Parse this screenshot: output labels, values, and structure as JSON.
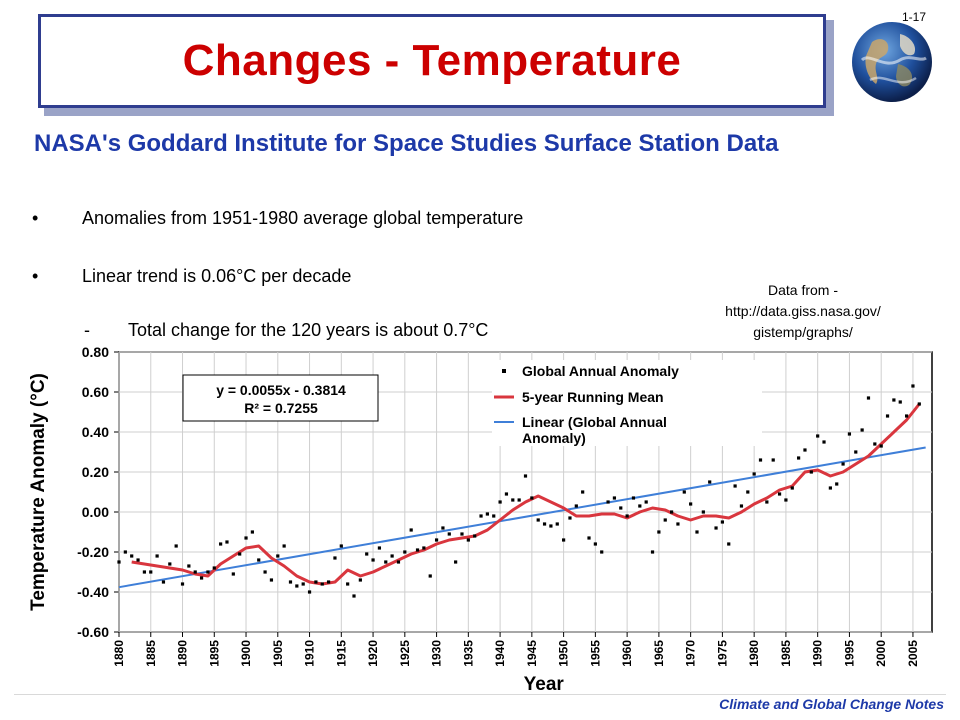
{
  "slide": {
    "number": "1-17",
    "title": "Changes - Temperature",
    "subtitle": "NASA's Goddard Institute for Space Studies Surface Station Data",
    "bullets": [
      "Anomalies from 1951-1980 average global temperature",
      "Linear trend is 0.06°C per decade"
    ],
    "subbullet": "Total change for the 120 years is about 0.7°C",
    "source": {
      "line1": "Data from -",
      "line2": "http://data.giss.nasa.gov/",
      "line3": "gistemp/graphs/"
    },
    "footer": "Climate and Global Change Notes"
  },
  "colors": {
    "title": "#cc0000",
    "subtitle": "#1d39a8",
    "title_border": "#2f3d8f",
    "running_mean": "#d9363e",
    "linear": "#3f7fd8",
    "points": "#000000"
  },
  "chart_data": {
    "type": "scatter",
    "xlabel": "Year",
    "ylabel": "Temperature Anomaly (°C)",
    "xlim": [
      1880,
      2008
    ],
    "ylim": [
      -0.6,
      0.8
    ],
    "x_ticks": [
      "1880",
      "1885",
      "1890",
      "1895",
      "1900",
      "1905",
      "1910",
      "1915",
      "1920",
      "1925",
      "1930",
      "1935",
      "1940",
      "1945",
      "1950",
      "1955",
      "1960",
      "1965",
      "1970",
      "1975",
      "1980",
      "1985",
      "1990",
      "1995",
      "2000",
      "2005"
    ],
    "y_ticks": [
      "0.80",
      "0.60",
      "0.40",
      "0.20",
      "0.00",
      "-0.20",
      "-0.40",
      "-0.60"
    ],
    "grid": true,
    "legend_position": "top-right",
    "equation": "y = 0.0055x - 0.3814",
    "r_squared": "R² = 0.7255",
    "series": [
      {
        "name": "Global Annual Anomaly",
        "type": "scatter",
        "x": [
          1880,
          1881,
          1882,
          1883,
          1884,
          1885,
          1886,
          1887,
          1888,
          1889,
          1890,
          1891,
          1892,
          1893,
          1894,
          1895,
          1896,
          1897,
          1898,
          1899,
          1900,
          1901,
          1902,
          1903,
          1904,
          1905,
          1906,
          1907,
          1908,
          1909,
          1910,
          1911,
          1912,
          1913,
          1914,
          1915,
          1916,
          1917,
          1918,
          1919,
          1920,
          1921,
          1922,
          1923,
          1924,
          1925,
          1926,
          1927,
          1928,
          1929,
          1930,
          1931,
          1932,
          1933,
          1934,
          1935,
          1936,
          1937,
          1938,
          1939,
          1940,
          1941,
          1942,
          1943,
          1944,
          1945,
          1946,
          1947,
          1948,
          1949,
          1950,
          1951,
          1952,
          1953,
          1954,
          1955,
          1956,
          1957,
          1958,
          1959,
          1960,
          1961,
          1962,
          1963,
          1964,
          1965,
          1966,
          1967,
          1968,
          1969,
          1970,
          1971,
          1972,
          1973,
          1974,
          1975,
          1976,
          1977,
          1978,
          1979,
          1980,
          1981,
          1982,
          1983,
          1984,
          1985,
          1986,
          1987,
          1988,
          1989,
          1990,
          1991,
          1992,
          1993,
          1994,
          1995,
          1996,
          1997,
          1998,
          1999,
          2000,
          2001,
          2002,
          2003,
          2004,
          2005,
          2006
        ],
        "y": [
          -0.25,
          -0.2,
          -0.22,
          -0.24,
          -0.3,
          -0.3,
          -0.22,
          -0.35,
          -0.26,
          -0.17,
          -0.36,
          -0.27,
          -0.3,
          -0.33,
          -0.3,
          -0.28,
          -0.16,
          -0.15,
          -0.31,
          -0.21,
          -0.13,
          -0.1,
          -0.24,
          -0.3,
          -0.34,
          -0.22,
          -0.17,
          -0.35,
          -0.37,
          -0.36,
          -0.4,
          -0.35,
          -0.36,
          -0.35,
          -0.23,
          -0.17,
          -0.36,
          -0.42,
          -0.34,
          -0.21,
          -0.24,
          -0.18,
          -0.25,
          -0.22,
          -0.25,
          -0.2,
          -0.09,
          -0.19,
          -0.18,
          -0.32,
          -0.14,
          -0.08,
          -0.11,
          -0.25,
          -0.11,
          -0.14,
          -0.12,
          -0.02,
          -0.01,
          -0.02,
          0.05,
          0.09,
          0.06,
          0.06,
          0.18,
          0.07,
          -0.04,
          -0.06,
          -0.07,
          -0.06,
          -0.14,
          -0.03,
          0.03,
          0.1,
          -0.13,
          -0.16,
          -0.2,
          0.05,
          0.07,
          0.02,
          -0.02,
          0.07,
          0.03,
          0.05,
          -0.2,
          -0.1,
          -0.04,
          0.0,
          -0.06,
          0.1,
          0.04,
          -0.1,
          0.0,
          0.15,
          -0.08,
          -0.05,
          -0.16,
          0.13,
          0.03,
          0.1,
          0.19,
          0.26,
          0.05,
          0.26,
          0.09,
          0.06,
          0.12,
          0.27,
          0.31,
          0.2,
          0.38,
          0.35,
          0.12,
          0.14,
          0.24,
          0.39,
          0.3,
          0.41,
          0.57,
          0.34,
          0.33,
          0.48,
          0.56,
          0.55,
          0.48,
          0.63,
          0.54
        ]
      },
      {
        "name": "5-year Running Mean",
        "type": "line",
        "x": [
          1882,
          1884,
          1886,
          1888,
          1890,
          1892,
          1894,
          1896,
          1898,
          1900,
          1902,
          1904,
          1906,
          1908,
          1910,
          1912,
          1914,
          1916,
          1918,
          1920,
          1922,
          1924,
          1926,
          1928,
          1930,
          1932,
          1934,
          1936,
          1938,
          1940,
          1942,
          1944,
          1946,
          1948,
          1950,
          1952,
          1954,
          1956,
          1958,
          1960,
          1962,
          1964,
          1966,
          1968,
          1970,
          1972,
          1974,
          1976,
          1978,
          1980,
          1982,
          1984,
          1986,
          1988,
          1990,
          1992,
          1994,
          1996,
          1998,
          2000,
          2002,
          2004,
          2006
        ],
        "y": [
          -0.25,
          -0.26,
          -0.27,
          -0.28,
          -0.29,
          -0.31,
          -0.32,
          -0.26,
          -0.22,
          -0.18,
          -0.17,
          -0.23,
          -0.27,
          -0.32,
          -0.35,
          -0.36,
          -0.35,
          -0.29,
          -0.32,
          -0.3,
          -0.27,
          -0.24,
          -0.21,
          -0.19,
          -0.16,
          -0.14,
          -0.13,
          -0.12,
          -0.09,
          -0.04,
          0.01,
          0.05,
          0.08,
          0.05,
          0.02,
          -0.02,
          -0.02,
          -0.01,
          -0.01,
          -0.03,
          0.0,
          0.02,
          0.01,
          -0.02,
          -0.04,
          -0.02,
          -0.02,
          -0.03,
          0.0,
          0.04,
          0.07,
          0.11,
          0.13,
          0.2,
          0.21,
          0.18,
          0.2,
          0.24,
          0.28,
          0.34,
          0.4,
          0.46,
          0.54
        ]
      },
      {
        "name": "Linear (Global Annual Anomaly)",
        "type": "line",
        "x": [
          1880,
          2007
        ],
        "y": [
          -0.3759,
          0.3226
        ]
      }
    ]
  }
}
